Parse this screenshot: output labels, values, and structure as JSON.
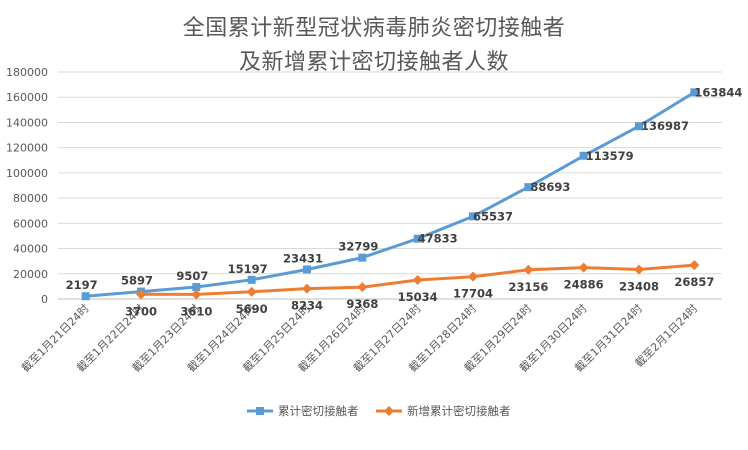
{
  "chart_data": {
    "type": "line",
    "title": [
      "全国累计新型冠状病毒肺炎密切接触者",
      "及新增累计密切接触者人数"
    ],
    "xlabel": "",
    "ylabel": "",
    "ylim": [
      0,
      180000
    ],
    "yticks": [
      0,
      20000,
      40000,
      60000,
      80000,
      100000,
      120000,
      140000,
      160000,
      180000
    ],
    "grid": true,
    "legend_position": "bottom",
    "categories": [
      "截至1月21日24时",
      "截至1月22日24时",
      "截至1月23日24时",
      "截至1月24日24时",
      "截至1月25日24时",
      "截至1月26日24时",
      "截至1月27日24时",
      "截至1月28日24时",
      "截至1月29日24时",
      "截至1月30日24时",
      "截至1月31日24时",
      "截至2月1日24时"
    ],
    "series": [
      {
        "name": "累计密切接触者",
        "color": "#5b9bd5",
        "marker": "square",
        "values": [
          2197,
          5897,
          9507,
          15197,
          23431,
          32799,
          47833,
          65537,
          88693,
          113579,
          136987,
          163844
        ],
        "labels": [
          "2197",
          "5897",
          "9507",
          "15197",
          "23431",
          "32799",
          "47833",
          "65537",
          "88693",
          "113579",
          "136987",
          "163844"
        ]
      },
      {
        "name": "新增累计密切接触者",
        "color": "#ed7d31",
        "marker": "diamond",
        "values": [
          null,
          3700,
          3610,
          5690,
          8234,
          9368,
          15034,
          17704,
          23156,
          24886,
          23408,
          26857
        ],
        "labels": [
          "",
          "3700",
          "3610",
          "5690",
          "8234",
          "9368",
          "15034",
          "17704",
          "23156",
          "24886",
          "23408",
          "26857"
        ]
      }
    ]
  }
}
